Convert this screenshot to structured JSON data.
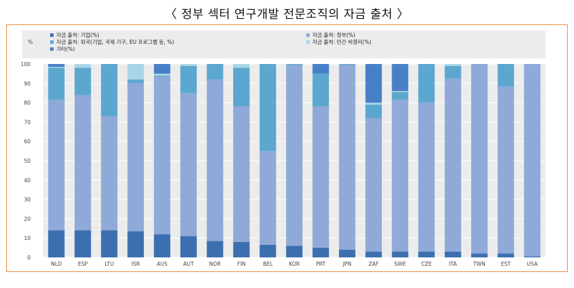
{
  "page": {
    "title": "〈 정부 섹터 연구개발 전문조직의 자금 출처 〉"
  },
  "colors": {
    "frame": "#e8914a",
    "legend_band": "#ececec",
    "grid": "#ffffff",
    "plot_bg": "#ececec"
  },
  "chart_data": {
    "type": "bar",
    "stacked": true,
    "title": "",
    "xlabel": "",
    "ylabel": "%",
    "ylim": [
      0,
      100
    ],
    "yticks": [
      0,
      10,
      20,
      30,
      40,
      50,
      60,
      70,
      80,
      90,
      100
    ],
    "grid": true,
    "legend_position": "top",
    "categories": [
      "NLD",
      "ESP",
      "LTU",
      "ISR",
      "AUS",
      "AUT",
      "NOR",
      "FIN",
      "BEL",
      "KOR",
      "PRT",
      "JPN",
      "ZAF",
      "SWE",
      "CZE",
      "ITA",
      "TWN",
      "EST",
      "USA"
    ],
    "series": [
      {
        "name": "자금 출처: 기업(%)",
        "color": "#3c6fb0",
        "values": [
          14,
          14,
          14,
          13.5,
          12,
          11,
          8.5,
          8,
          6.5,
          6,
          5,
          4,
          3,
          3,
          3,
          3,
          2,
          2,
          0.5
        ]
      },
      {
        "name": "자금 출처: 정부(%)",
        "color": "#8fa9d8",
        "values": [
          67.5,
          70,
          59,
          76.5,
          81.5,
          74,
          83.5,
          70,
          48.5,
          93.5,
          73,
          95.5,
          69,
          78.5,
          77,
          89.5,
          98,
          86.5,
          99.5
        ]
      },
      {
        "name": "자금 출처: 외국(기업, 국제 기구, EU 프로그램 등, %)",
        "color": "#5ba7cf",
        "values": [
          16.5,
          14,
          27,
          2,
          0.5,
          14,
          8,
          20,
          45,
          0.5,
          17,
          0.5,
          7,
          4,
          20,
          6.5,
          0,
          11.5,
          0
        ]
      },
      {
        "name": "자금 출처: 민간 비영리(%)",
        "color": "#a9d6e6",
        "values": [
          0.5,
          2,
          0,
          8,
          1,
          1,
          0,
          2,
          0,
          0,
          0,
          0,
          1,
          0.5,
          0,
          1,
          0,
          0,
          0
        ]
      },
      {
        "name": "기타(%)",
        "color": "#4880c8",
        "values": [
          1.5,
          0,
          0,
          0,
          5,
          0,
          0,
          0,
          0,
          0,
          5,
          0,
          20,
          14,
          0,
          0,
          0,
          0,
          0
        ]
      }
    ]
  }
}
